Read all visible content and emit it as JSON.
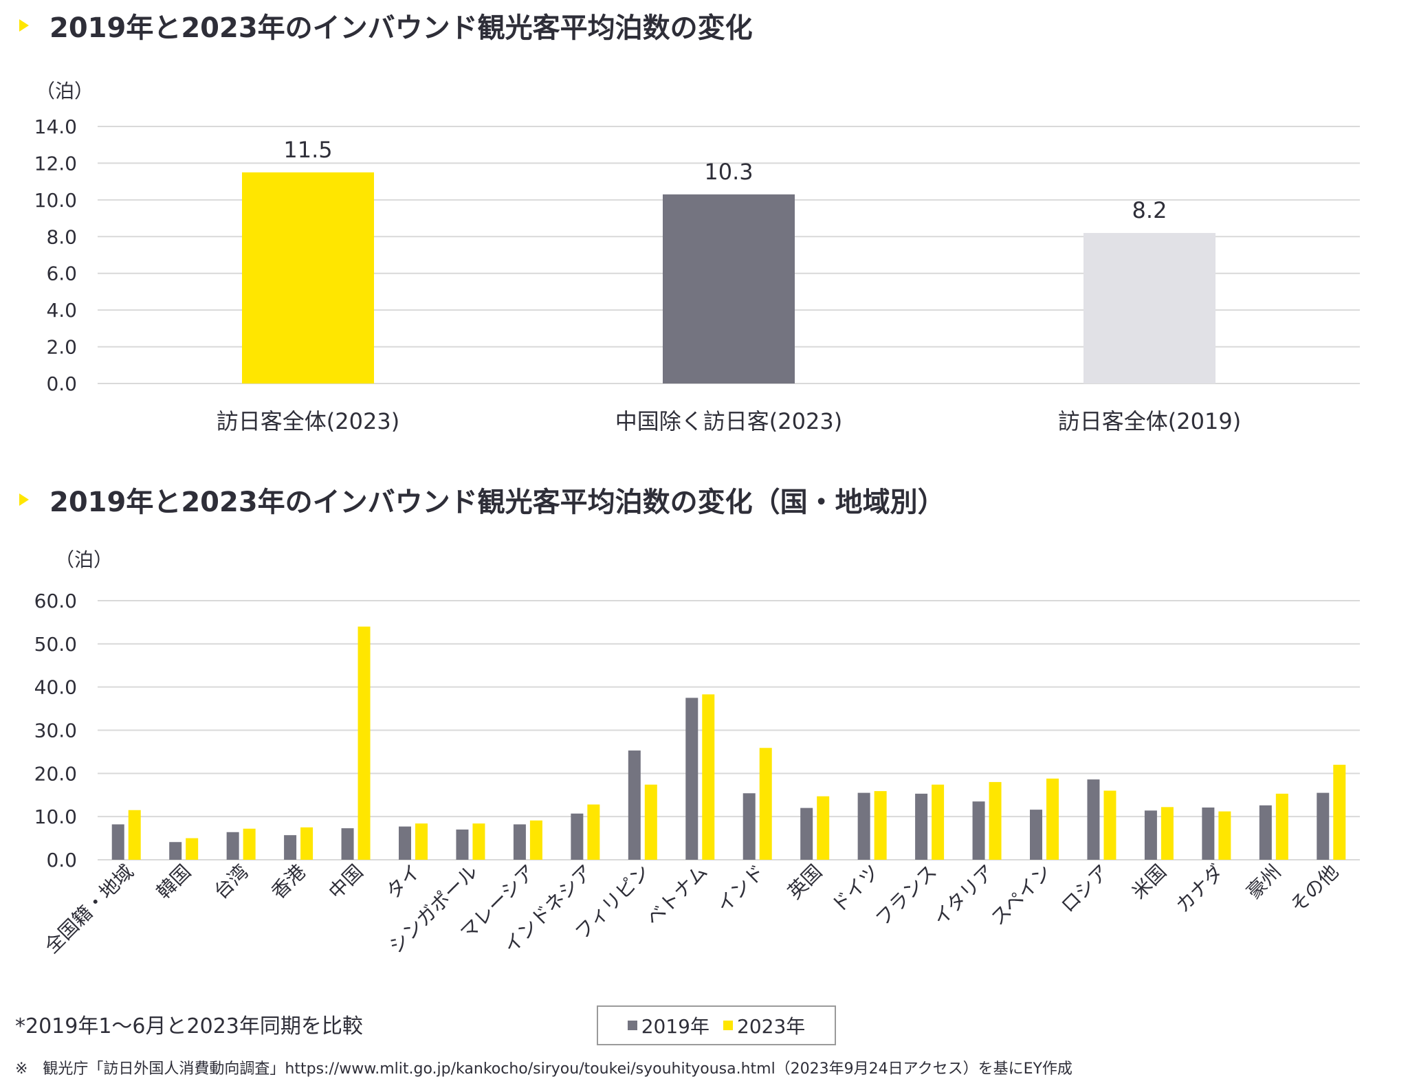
{
  "chart_data": [
    {
      "type": "bar",
      "title": "2019年と2023年のインバウンド観光客平均泊数の変化",
      "ylabel": "（泊）",
      "ylim": [
        0,
        14
      ],
      "yticks": [
        "0.0",
        "2.0",
        "4.0",
        "6.0",
        "8.0",
        "10.0",
        "12.0",
        "14.0"
      ],
      "categories": [
        "訪日客全体(2023)",
        "中国除く訪日客(2023)",
        "訪日客全体(2019)"
      ],
      "values": [
        11.5,
        10.3,
        8.2
      ],
      "value_labels": [
        "11.5",
        "10.3",
        "8.2"
      ],
      "colors": [
        "#ffe600",
        "#747480",
        "#e1e1e6"
      ]
    },
    {
      "type": "bar",
      "title": "2019年と2023年のインバウンド観光客平均泊数の変化（国・地域別）",
      "ylabel": "（泊）",
      "ylim": [
        0,
        60
      ],
      "yticks": [
        "0.0",
        "10.0",
        "20.0",
        "30.0",
        "40.0",
        "50.0",
        "60.0"
      ],
      "categories": [
        "全国籍・地域",
        "韓国",
        "台湾",
        "香港",
        "中国",
        "タイ",
        "シンガポール",
        "マレーシア",
        "インドネシア",
        "フィリピン",
        "ベトナム",
        "インド",
        "英国",
        "ドイツ",
        "フランス",
        "イタリア",
        "スペイン",
        "ロシア",
        "米国",
        "カナダ",
        "豪州",
        "その他"
      ],
      "series": [
        {
          "name": "2019年",
          "color": "#747480",
          "values": [
            8.2,
            4.1,
            6.4,
            5.7,
            7.3,
            7.7,
            7.0,
            8.2,
            10.7,
            25.3,
            37.5,
            15.4,
            12.0,
            15.5,
            15.3,
            13.5,
            11.6,
            18.6,
            11.4,
            12.1,
            12.6,
            15.5
          ]
        },
        {
          "name": "2023年",
          "color": "#ffe600",
          "values": [
            11.5,
            5.0,
            7.2,
            7.5,
            54.0,
            8.4,
            8.4,
            9.1,
            12.8,
            17.4,
            38.3,
            25.9,
            14.7,
            15.9,
            17.4,
            18.0,
            18.8,
            16.0,
            12.2,
            11.2,
            15.3,
            22.0
          ]
        }
      ]
    }
  ],
  "note": "*2019年1～6月と2023年同期を比較",
  "source": "※　観光庁「訪日外国人消費動向調査」https://www.mlit.go.jp/kankocho/siryou/toukei/syouhityousa.html（2023年9月24日アクセス）を基にEY作成",
  "colors": {
    "accent": "#ffe600",
    "dark": "#747480",
    "light": "#e1e1e6"
  }
}
